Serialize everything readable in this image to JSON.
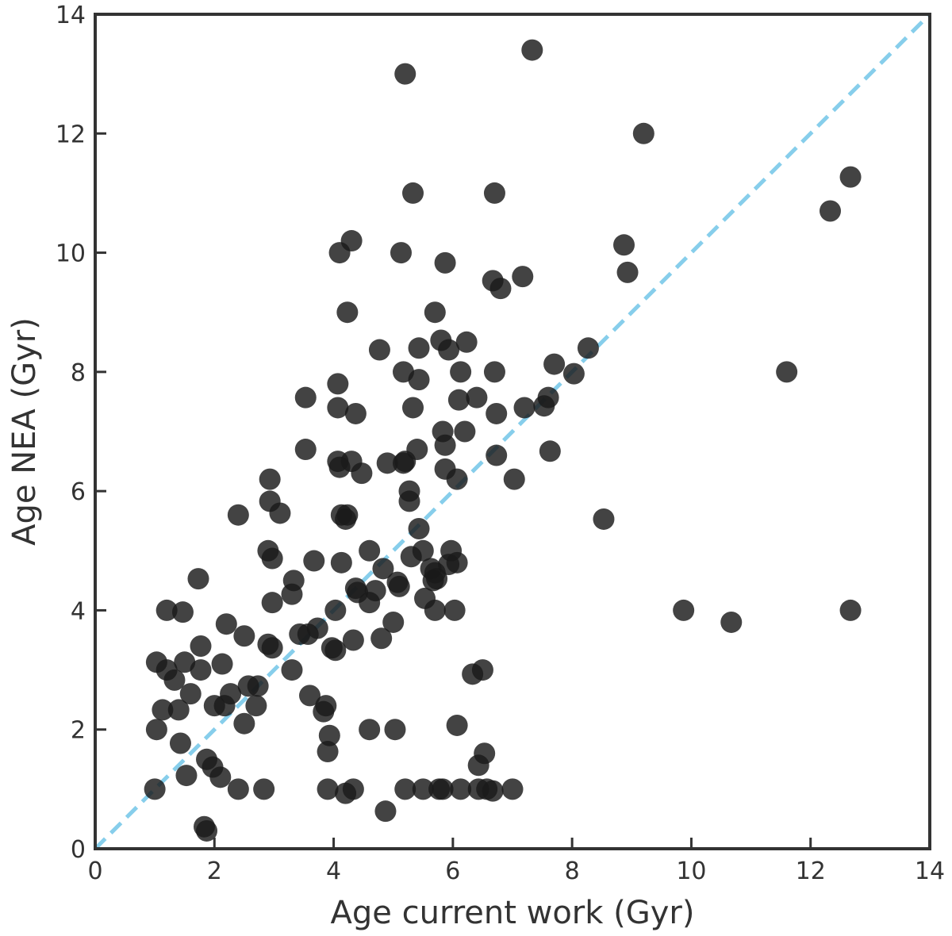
{
  "chart_data": {
    "type": "scatter",
    "xlabel": "Age current work (Gyr)",
    "ylabel": "Age NEA (Gyr)",
    "xlim": [
      0,
      14
    ],
    "ylim": [
      0,
      14
    ],
    "xticks": [
      0,
      2,
      4,
      6,
      8,
      10,
      12,
      14
    ],
    "yticks": [
      0,
      2,
      4,
      6,
      8,
      10,
      12,
      14
    ],
    "grid": false,
    "colors": {
      "points": "#1a1a1a",
      "reference_line": "#87ceeb",
      "axes": "#333333"
    },
    "reference_line": {
      "style": "dashed",
      "points": [
        [
          0,
          0
        ],
        [
          14,
          14
        ]
      ]
    },
    "series": [
      {
        "values": [
          [
            7.33,
            13.4
          ],
          [
            5.2,
            13.0
          ],
          [
            9.2,
            12.0
          ],
          [
            12.67,
            11.27
          ],
          [
            5.33,
            11.0
          ],
          [
            6.7,
            11.0
          ],
          [
            12.33,
            10.7
          ],
          [
            8.87,
            10.13
          ],
          [
            8.93,
            9.67
          ],
          [
            4.3,
            10.2
          ],
          [
            4.1,
            10.0
          ],
          [
            5.13,
            10.0
          ],
          [
            5.87,
            9.83
          ],
          [
            6.67,
            9.53
          ],
          [
            6.8,
            9.4
          ],
          [
            7.17,
            9.6
          ],
          [
            4.23,
            9.0
          ],
          [
            5.7,
            9.0
          ],
          [
            4.77,
            8.37
          ],
          [
            5.43,
            8.4
          ],
          [
            5.8,
            8.53
          ],
          [
            5.93,
            8.37
          ],
          [
            6.23,
            8.5
          ],
          [
            8.27,
            8.4
          ],
          [
            7.7,
            8.13
          ],
          [
            8.03,
            7.97
          ],
          [
            11.6,
            8.0
          ],
          [
            5.17,
            8.0
          ],
          [
            5.43,
            7.87
          ],
          [
            6.13,
            8.0
          ],
          [
            6.7,
            8.0
          ],
          [
            3.53,
            7.57
          ],
          [
            4.07,
            7.8
          ],
          [
            4.07,
            7.4
          ],
          [
            4.37,
            7.3
          ],
          [
            5.33,
            7.4
          ],
          [
            6.1,
            7.53
          ],
          [
            6.4,
            7.57
          ],
          [
            6.73,
            7.3
          ],
          [
            7.2,
            7.4
          ],
          [
            7.6,
            7.57
          ],
          [
            7.53,
            7.43
          ],
          [
            5.83,
            7.0
          ],
          [
            6.2,
            7.0
          ],
          [
            5.87,
            6.77
          ],
          [
            3.53,
            6.7
          ],
          [
            5.4,
            6.7
          ],
          [
            7.63,
            6.67
          ],
          [
            6.73,
            6.6
          ],
          [
            4.07,
            6.5
          ],
          [
            4.1,
            6.4
          ],
          [
            4.3,
            6.5
          ],
          [
            4.47,
            6.3
          ],
          [
            4.9,
            6.47
          ],
          [
            5.17,
            6.47
          ],
          [
            5.2,
            6.5
          ],
          [
            5.87,
            6.37
          ],
          [
            6.07,
            6.2
          ],
          [
            7.03,
            6.2
          ],
          [
            2.93,
            6.2
          ],
          [
            2.93,
            5.83
          ],
          [
            3.1,
            5.63
          ],
          [
            2.4,
            5.6
          ],
          [
            5.27,
            6.0
          ],
          [
            5.27,
            5.83
          ],
          [
            4.13,
            5.6
          ],
          [
            4.2,
            5.53
          ],
          [
            4.23,
            5.6
          ],
          [
            8.53,
            5.53
          ],
          [
            5.43,
            5.37
          ],
          [
            2.9,
            5.0
          ],
          [
            2.97,
            4.87
          ],
          [
            3.67,
            4.83
          ],
          [
            4.6,
            5.0
          ],
          [
            5.3,
            4.9
          ],
          [
            5.5,
            5.0
          ],
          [
            5.97,
            5.0
          ],
          [
            6.07,
            4.8
          ],
          [
            5.93,
            4.77
          ],
          [
            5.7,
            4.63
          ],
          [
            5.63,
            4.7
          ],
          [
            5.73,
            4.53
          ],
          [
            4.13,
            4.8
          ],
          [
            4.83,
            4.7
          ],
          [
            5.07,
            4.47
          ],
          [
            5.1,
            4.4
          ],
          [
            5.53,
            4.2
          ],
          [
            5.67,
            4.5
          ],
          [
            1.73,
            4.53
          ],
          [
            3.33,
            4.5
          ],
          [
            3.3,
            4.27
          ],
          [
            4.37,
            4.37
          ],
          [
            4.4,
            4.3
          ],
          [
            4.6,
            4.13
          ],
          [
            4.7,
            4.33
          ],
          [
            2.97,
            4.13
          ],
          [
            1.2,
            4.0
          ],
          [
            1.47,
            3.97
          ],
          [
            4.03,
            4.0
          ],
          [
            5.7,
            4.0
          ],
          [
            6.03,
            4.0
          ],
          [
            9.87,
            4.0
          ],
          [
            10.67,
            3.8
          ],
          [
            12.67,
            4.0
          ],
          [
            2.2,
            3.77
          ],
          [
            2.5,
            3.57
          ],
          [
            3.43,
            3.6
          ],
          [
            3.73,
            3.7
          ],
          [
            3.57,
            3.6
          ],
          [
            5.0,
            3.8
          ],
          [
            4.8,
            3.53
          ],
          [
            4.33,
            3.5
          ],
          [
            3.97,
            3.37
          ],
          [
            4.03,
            3.33
          ],
          [
            2.9,
            3.43
          ],
          [
            2.97,
            3.37
          ],
          [
            1.03,
            3.13
          ],
          [
            1.2,
            3.0
          ],
          [
            1.5,
            3.13
          ],
          [
            1.77,
            3.4
          ],
          [
            1.77,
            3.0
          ],
          [
            2.13,
            3.1
          ],
          [
            1.33,
            2.83
          ],
          [
            1.6,
            2.6
          ],
          [
            3.3,
            3.0
          ],
          [
            3.6,
            2.57
          ],
          [
            3.83,
            2.3
          ],
          [
            3.87,
            2.4
          ],
          [
            2.57,
            2.73
          ],
          [
            2.73,
            2.73
          ],
          [
            2.27,
            2.6
          ],
          [
            2.17,
            2.4
          ],
          [
            2.0,
            2.4
          ],
          [
            2.7,
            2.4
          ],
          [
            1.13,
            2.33
          ],
          [
            1.4,
            2.33
          ],
          [
            2.5,
            2.1
          ],
          [
            6.33,
            2.93
          ],
          [
            6.5,
            3.0
          ],
          [
            6.07,
            2.07
          ],
          [
            1.03,
            2.0
          ],
          [
            3.93,
            1.9
          ],
          [
            4.6,
            2.0
          ],
          [
            5.03,
            2.0
          ],
          [
            1.43,
            1.77
          ],
          [
            3.9,
            1.63
          ],
          [
            6.53,
            1.6
          ],
          [
            6.43,
            1.4
          ],
          [
            1.87,
            1.5
          ],
          [
            1.97,
            1.37
          ],
          [
            1.53,
            1.23
          ],
          [
            2.1,
            1.2
          ],
          [
            1.0,
            1.0
          ],
          [
            2.4,
            1.0
          ],
          [
            2.83,
            1.0
          ],
          [
            3.9,
            1.0
          ],
          [
            4.2,
            0.93
          ],
          [
            4.33,
            1.0
          ],
          [
            5.2,
            1.0
          ],
          [
            5.5,
            1.0
          ],
          [
            5.77,
            1.0
          ],
          [
            5.83,
            1.0
          ],
          [
            6.13,
            1.0
          ],
          [
            6.43,
            1.0
          ],
          [
            6.57,
            1.0
          ],
          [
            6.67,
            0.97
          ],
          [
            7.0,
            1.0
          ],
          [
            4.87,
            0.63
          ],
          [
            1.83,
            0.37
          ],
          [
            1.87,
            0.3
          ]
        ]
      }
    ]
  }
}
